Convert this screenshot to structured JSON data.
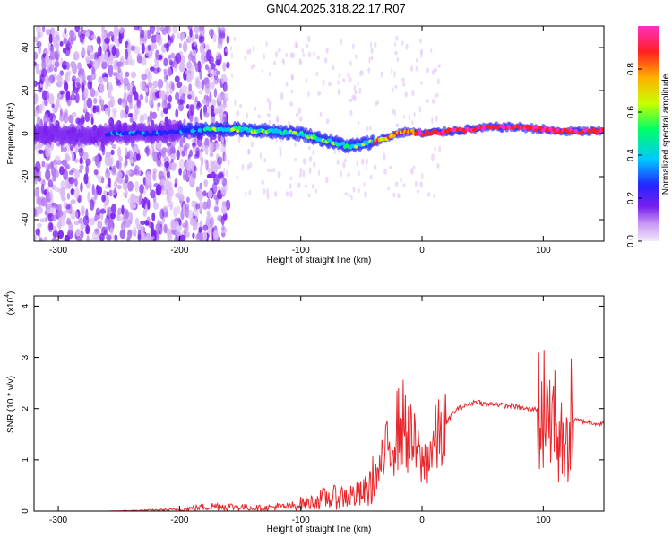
{
  "figure": {
    "title": "GN04.2025.318.22.17.R07"
  },
  "colors": {
    "snr_line": "#e8262b",
    "axis": "#000000",
    "background": "#ffffff",
    "colormap": [
      "#f3ecfa",
      "#d9b8f5",
      "#b276f2",
      "#7a1ff0",
      "#2424ff",
      "#00c8ff",
      "#00ff66",
      "#c8ff00",
      "#ffb000",
      "#ff2020",
      "#ff2ec8"
    ]
  },
  "chart_data": [
    {
      "id": "spectrogram",
      "type": "heatmap",
      "title": "GN04.2025.318.22.17.R07",
      "xlabel": "Height of straight line (km)",
      "ylabel": "Frequency (Hz)",
      "xlim": [
        -320,
        150
      ],
      "ylim": [
        -50,
        50
      ],
      "x_ticks": [
        -300,
        -200,
        -100,
        0,
        100
      ],
      "x_tick_labels": [
        "-300",
        "-200",
        "-100",
        "0",
        "100"
      ],
      "y_ticks": [
        -40,
        -20,
        0,
        20,
        40
      ],
      "y_tick_labels": [
        "-40",
        "-20",
        "0",
        "20",
        "40"
      ],
      "colorbar": {
        "label": "Normalized spectral amplitude",
        "range": [
          0,
          1
        ],
        "ticks": [
          0.0,
          0.2,
          0.4,
          0.6,
          0.8
        ],
        "tick_labels": [
          "0.0",
          "0.2",
          "0.4",
          "0.6",
          "0.8"
        ]
      },
      "ridge": {
        "description_x": [
          -320,
          -280,
          -250,
          -220,
          -200,
          -180,
          -150,
          -120,
          -100,
          -80,
          -60,
          -40,
          -20,
          -10,
          0,
          20,
          40,
          60,
          80,
          100,
          110,
          120,
          150
        ],
        "frequency": [
          0,
          -1,
          0,
          0,
          1,
          2,
          2,
          1,
          0,
          -3,
          -6,
          -4,
          0,
          1,
          0,
          1,
          2,
          3,
          3,
          2,
          1,
          1,
          1
        ]
      }
    },
    {
      "id": "snr",
      "type": "line",
      "xlabel": "Height of straight line (km)",
      "ylabel": "SNR (10 * v/v)",
      "y_multiplier": "(x10",
      "y_multiplier_exp": "4",
      "y_multiplier_close": ")",
      "xlim": [
        -320,
        150
      ],
      "ylim": [
        0,
        42000
      ],
      "x_ticks": [
        -300,
        -200,
        -100,
        0,
        100
      ],
      "x_tick_labels": [
        "-300",
        "-200",
        "-100",
        "0",
        "100"
      ],
      "y_ticks": [
        0,
        10000,
        20000,
        30000,
        40000
      ],
      "y_tick_labels": [
        "0",
        "1",
        "2",
        "3",
        "4"
      ],
      "series": [
        {
          "x": [
            -320,
            -300,
            -280,
            -260,
            -240,
            -220,
            -200,
            -180,
            -170,
            -160,
            -150,
            -140,
            -130,
            -120,
            -110,
            -100,
            -90,
            -80,
            -70,
            -60,
            -50,
            -45,
            -40,
            -35,
            -30,
            -25,
            -20,
            -15,
            -10,
            -5,
            0,
            5,
            10,
            15,
            20,
            25,
            30,
            35,
            40,
            45,
            50,
            55,
            60,
            65,
            70,
            75,
            80,
            85,
            90,
            95,
            100,
            103,
            106,
            109,
            112,
            115,
            118,
            121,
            125,
            130,
            140,
            150
          ],
          "y": [
            0,
            0,
            0,
            0,
            100,
            200,
            300,
            800,
            1000,
            900,
            800,
            700,
            600,
            900,
            800,
            1500,
            1800,
            2500,
            2700,
            3000,
            3200,
            4000,
            6000,
            8000,
            11000,
            14000,
            16000,
            17000,
            14000,
            12000,
            9000,
            11000,
            13000,
            15000,
            17000,
            19000,
            20000,
            20500,
            21000,
            21500,
            21000,
            20800,
            21000,
            20700,
            20500,
            20600,
            20200,
            20000,
            19800,
            20000,
            18000,
            28000,
            12000,
            25000,
            9000,
            22000,
            8000,
            18000,
            17800,
            17600,
            17300,
            17000
          ]
        }
      ]
    }
  ]
}
